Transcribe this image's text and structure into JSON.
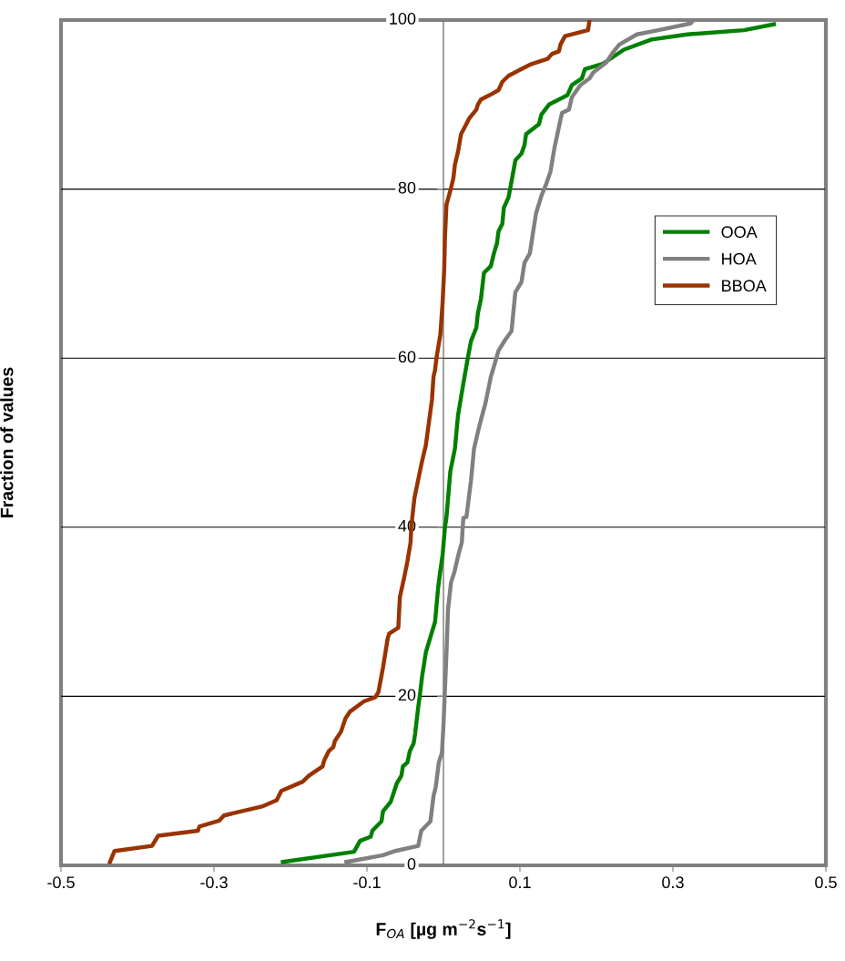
{
  "chart_data": {
    "type": "line",
    "xlabel": "F$_{OA}$ [µg m$^{−2}$s$^{−1}$]",
    "ylabel": "Fraction of values",
    "xlim": [
      -0.5,
      0.5
    ],
    "xticks": [
      -0.5,
      -0.3,
      -0.1,
      0.1,
      0.3,
      0.5
    ],
    "ylim": [
      0,
      100
    ],
    "yticks": [
      0,
      20,
      40,
      60,
      80,
      100
    ],
    "grid": "y",
    "legend": "top right",
    "marker": "none",
    "line_style": "solid",
    "series": [
      {
        "name": "OOA",
        "color": "#008000",
        "x": [
          -0.21,
          -0.117,
          -0.109,
          -0.095,
          -0.093,
          -0.081,
          -0.079,
          -0.069,
          -0.061,
          -0.055,
          -0.053,
          -0.047,
          -0.044,
          -0.039,
          -0.037,
          -0.033,
          -0.031,
          -0.028,
          -0.023,
          -0.017,
          -0.011,
          -0.007,
          -0.004,
          -0.001,
          0.002,
          0.004,
          0.009,
          0.015,
          0.019,
          0.026,
          0.032,
          0.036,
          0.043,
          0.045,
          0.049,
          0.053,
          0.062,
          0.066,
          0.07,
          0.072,
          0.077,
          0.079,
          0.085,
          0.089,
          0.094,
          0.102,
          0.106,
          0.108,
          0.125,
          0.128,
          0.138,
          0.162,
          0.168,
          0.181,
          0.185,
          0.208,
          0.236,
          0.272,
          0.319,
          0.393,
          0.432
        ],
        "values": [
          0.4,
          1.6,
          2.9,
          3.4,
          4.1,
          5.2,
          6.4,
          7.5,
          9.7,
          10.6,
          11.7,
          12.2,
          13.5,
          14.4,
          15.6,
          18.7,
          20.0,
          22.3,
          25.2,
          27.0,
          28.8,
          32.8,
          34.9,
          36.8,
          40.0,
          41.2,
          46.6,
          49.3,
          53.2,
          57.0,
          60.1,
          62.0,
          63.6,
          65.3,
          67.0,
          70.1,
          70.9,
          72.4,
          73.6,
          75.0,
          75.9,
          77.8,
          79.0,
          80.9,
          83.4,
          84.2,
          85.2,
          86.5,
          87.7,
          88.8,
          90.0,
          91.1,
          92.3,
          93.1,
          94.2,
          94.8,
          96.5,
          97.7,
          98.3,
          98.8,
          99.5
        ]
      },
      {
        "name": "HOA",
        "color": "#808080",
        "x": [
          -0.127,
          -0.079,
          -0.063,
          -0.033,
          -0.029,
          -0.017,
          -0.013,
          -0.01,
          -0.006,
          -0.002,
          0.0,
          0.002,
          0.004,
          0.006,
          0.01,
          0.014,
          0.02,
          0.024,
          0.026,
          0.03,
          0.036,
          0.04,
          0.047,
          0.055,
          0.062,
          0.066,
          0.072,
          0.081,
          0.089,
          0.094,
          0.102,
          0.106,
          0.113,
          0.117,
          0.121,
          0.128,
          0.134,
          0.14,
          0.145,
          0.153,
          0.155,
          0.164,
          0.168,
          0.179,
          0.191,
          0.196,
          0.213,
          0.221,
          0.23,
          0.253,
          0.281,
          0.323,
          0.327
        ],
        "values": [
          0.4,
          1.2,
          1.7,
          2.3,
          4.1,
          5.2,
          8.2,
          9.3,
          12.2,
          13.3,
          16.5,
          20.9,
          25.2,
          30.3,
          33.5,
          34.6,
          36.9,
          38.2,
          41.1,
          41.2,
          45.5,
          49.3,
          52.0,
          54.7,
          57.8,
          59.0,
          60.9,
          62.2,
          63.2,
          67.8,
          69.0,
          71.3,
          72.4,
          74.8,
          77.1,
          79.2,
          80.5,
          82.1,
          84.8,
          88.2,
          89.0,
          89.4,
          90.9,
          92.3,
          93.1,
          93.8,
          95.0,
          96.1,
          97.1,
          98.3,
          98.8,
          99.6,
          100.0
        ]
      },
      {
        "name": "BBOA",
        "color": "#993300",
        "x": [
          -0.436,
          -0.43,
          -0.381,
          -0.373,
          -0.321,
          -0.319,
          -0.293,
          -0.287,
          -0.236,
          -0.218,
          -0.212,
          -0.184,
          -0.176,
          -0.158,
          -0.156,
          -0.15,
          -0.144,
          -0.142,
          -0.134,
          -0.128,
          -0.122,
          -0.104,
          -0.089,
          -0.085,
          -0.079,
          -0.073,
          -0.071,
          -0.059,
          -0.057,
          -0.051,
          -0.047,
          -0.043,
          -0.042,
          -0.038,
          -0.036,
          -0.028,
          -0.023,
          -0.019,
          -0.015,
          -0.013,
          -0.011,
          -0.009,
          -0.004,
          -0.001,
          0.001,
          0.002,
          0.004,
          0.009,
          0.013,
          0.015,
          0.019,
          0.023,
          0.034,
          0.043,
          0.045,
          0.049,
          0.06,
          0.072,
          0.077,
          0.085,
          0.102,
          0.115,
          0.136,
          0.142,
          0.151,
          0.153,
          0.159,
          0.189,
          0.191
        ],
        "values": [
          0.4,
          1.7,
          2.3,
          3.5,
          4.1,
          4.6,
          5.3,
          5.9,
          7.0,
          7.7,
          8.8,
          9.9,
          10.6,
          11.7,
          12.4,
          13.5,
          14.0,
          14.7,
          15.8,
          17.4,
          18.2,
          19.4,
          19.9,
          20.5,
          23.4,
          26.8,
          27.4,
          28.1,
          31.7,
          34.2,
          36.0,
          38.2,
          40.1,
          43.4,
          44.3,
          47.8,
          49.7,
          52.4,
          55.1,
          57.8,
          58.6,
          60.1,
          62.8,
          66.7,
          70.5,
          74.4,
          78.2,
          79.8,
          81.3,
          82.9,
          84.4,
          86.5,
          88.4,
          89.4,
          90.0,
          90.6,
          91.1,
          91.7,
          92.7,
          93.4,
          94.2,
          94.8,
          95.4,
          96.0,
          96.3,
          97.1,
          98.1,
          98.8,
          100.0
        ]
      }
    ]
  }
}
